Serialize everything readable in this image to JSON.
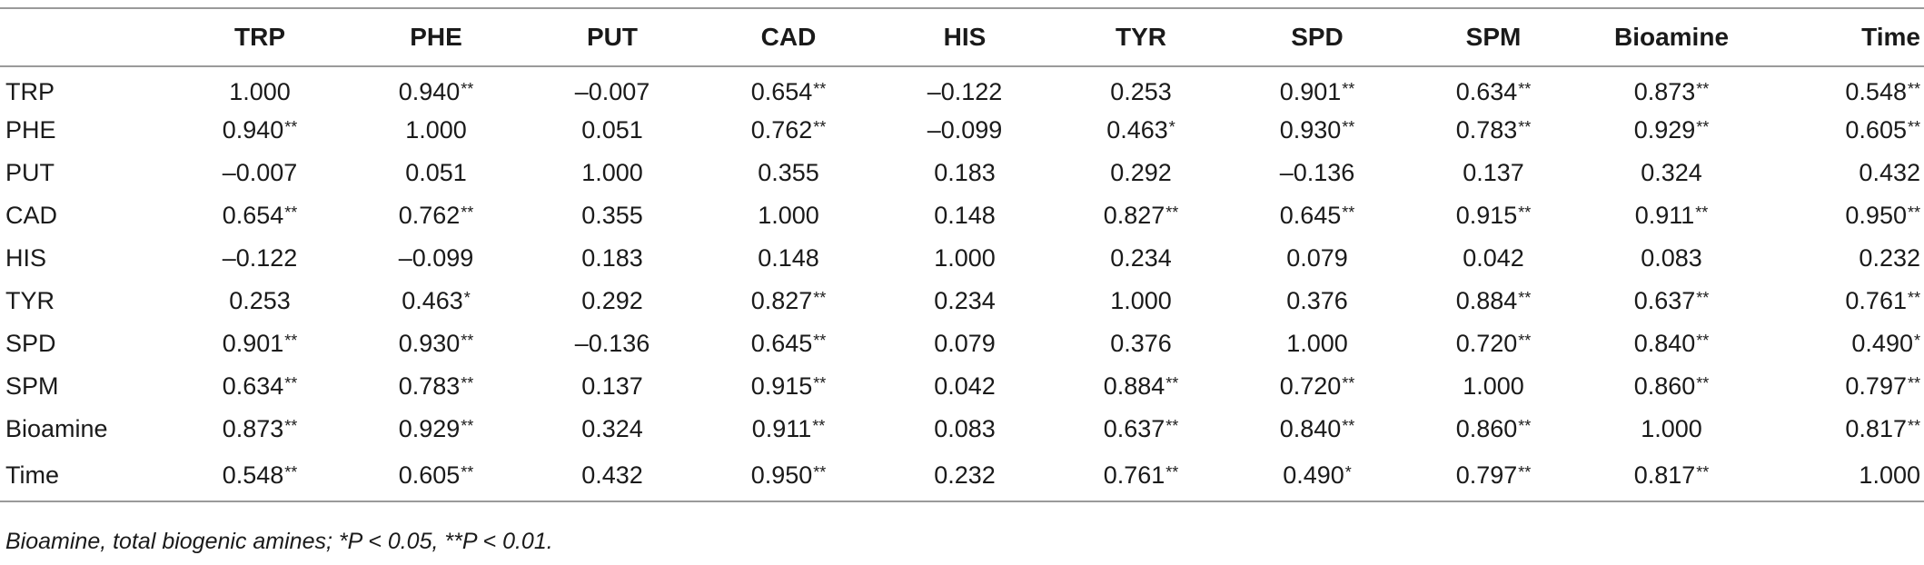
{
  "table": {
    "corner_label": "",
    "columns": [
      "TRP",
      "PHE",
      "PUT",
      "CAD",
      "HIS",
      "TYR",
      "SPD",
      "SPM",
      "Bioamine",
      "Time"
    ],
    "rows": [
      {
        "label": "TRP",
        "cells": [
          {
            "v": "1.000",
            "s": ""
          },
          {
            "v": "0.940",
            "s": "**"
          },
          {
            "v": "–0.007",
            "s": ""
          },
          {
            "v": "0.654",
            "s": "**"
          },
          {
            "v": "–0.122",
            "s": ""
          },
          {
            "v": "0.253",
            "s": ""
          },
          {
            "v": "0.901",
            "s": "**"
          },
          {
            "v": "0.634",
            "s": "**"
          },
          {
            "v": "0.873",
            "s": "**"
          },
          {
            "v": "0.548",
            "s": "**"
          }
        ]
      },
      {
        "label": "PHE",
        "cells": [
          {
            "v": "0.940",
            "s": "**"
          },
          {
            "v": "1.000",
            "s": ""
          },
          {
            "v": "0.051",
            "s": ""
          },
          {
            "v": "0.762",
            "s": "**"
          },
          {
            "v": "–0.099",
            "s": ""
          },
          {
            "v": "0.463",
            "s": "*"
          },
          {
            "v": "0.930",
            "s": "**"
          },
          {
            "v": "0.783",
            "s": "**"
          },
          {
            "v": "0.929",
            "s": "**"
          },
          {
            "v": "0.605",
            "s": "**"
          }
        ]
      },
      {
        "label": "PUT",
        "cells": [
          {
            "v": "–0.007",
            "s": ""
          },
          {
            "v": "0.051",
            "s": ""
          },
          {
            "v": "1.000",
            "s": ""
          },
          {
            "v": "0.355",
            "s": ""
          },
          {
            "v": "0.183",
            "s": ""
          },
          {
            "v": "0.292",
            "s": ""
          },
          {
            "v": "–0.136",
            "s": ""
          },
          {
            "v": "0.137",
            "s": ""
          },
          {
            "v": "0.324",
            "s": ""
          },
          {
            "v": "0.432",
            "s": ""
          }
        ]
      },
      {
        "label": "CAD",
        "cells": [
          {
            "v": "0.654",
            "s": "**"
          },
          {
            "v": "0.762",
            "s": "**"
          },
          {
            "v": "0.355",
            "s": ""
          },
          {
            "v": "1.000",
            "s": ""
          },
          {
            "v": "0.148",
            "s": ""
          },
          {
            "v": "0.827",
            "s": "**"
          },
          {
            "v": "0.645",
            "s": "**"
          },
          {
            "v": "0.915",
            "s": "**"
          },
          {
            "v": "0.911",
            "s": "**"
          },
          {
            "v": "0.950",
            "s": "**"
          }
        ]
      },
      {
        "label": "HIS",
        "cells": [
          {
            "v": "–0.122",
            "s": ""
          },
          {
            "v": "–0.099",
            "s": ""
          },
          {
            "v": "0.183",
            "s": ""
          },
          {
            "v": "0.148",
            "s": ""
          },
          {
            "v": "1.000",
            "s": ""
          },
          {
            "v": "0.234",
            "s": ""
          },
          {
            "v": "0.079",
            "s": ""
          },
          {
            "v": "0.042",
            "s": ""
          },
          {
            "v": "0.083",
            "s": ""
          },
          {
            "v": "0.232",
            "s": ""
          }
        ]
      },
      {
        "label": "TYR",
        "cells": [
          {
            "v": "0.253",
            "s": ""
          },
          {
            "v": "0.463",
            "s": "*"
          },
          {
            "v": "0.292",
            "s": ""
          },
          {
            "v": "0.827",
            "s": "**"
          },
          {
            "v": "0.234",
            "s": ""
          },
          {
            "v": "1.000",
            "s": ""
          },
          {
            "v": "0.376",
            "s": ""
          },
          {
            "v": "0.884",
            "s": "**"
          },
          {
            "v": "0.637",
            "s": "**"
          },
          {
            "v": "0.761",
            "s": "**"
          }
        ]
      },
      {
        "label": "SPD",
        "cells": [
          {
            "v": "0.901",
            "s": "**"
          },
          {
            "v": "0.930",
            "s": "**"
          },
          {
            "v": "–0.136",
            "s": ""
          },
          {
            "v": "0.645",
            "s": "**"
          },
          {
            "v": "0.079",
            "s": ""
          },
          {
            "v": "0.376",
            "s": ""
          },
          {
            "v": "1.000",
            "s": ""
          },
          {
            "v": "0.720",
            "s": "**"
          },
          {
            "v": "0.840",
            "s": "**"
          },
          {
            "v": "0.490",
            "s": "*"
          }
        ]
      },
      {
        "label": "SPM",
        "cells": [
          {
            "v": "0.634",
            "s": "**"
          },
          {
            "v": "0.783",
            "s": "**"
          },
          {
            "v": "0.137",
            "s": ""
          },
          {
            "v": "0.915",
            "s": "**"
          },
          {
            "v": "0.042",
            "s": ""
          },
          {
            "v": "0.884",
            "s": "**"
          },
          {
            "v": "0.720",
            "s": "**"
          },
          {
            "v": "1.000",
            "s": ""
          },
          {
            "v": "0.860",
            "s": "**"
          },
          {
            "v": "0.797",
            "s": "**"
          }
        ]
      },
      {
        "label": "Bioamine",
        "cells": [
          {
            "v": "0.873",
            "s": "**"
          },
          {
            "v": "0.929",
            "s": "**"
          },
          {
            "v": "0.324",
            "s": ""
          },
          {
            "v": "0.911",
            "s": "**"
          },
          {
            "v": "0.083",
            "s": ""
          },
          {
            "v": "0.637",
            "s": "**"
          },
          {
            "v": "0.840",
            "s": "**"
          },
          {
            "v": "0.860",
            "s": "**"
          },
          {
            "v": "1.000",
            "s": ""
          },
          {
            "v": "0.817",
            "s": "**"
          }
        ]
      },
      {
        "label": "Time",
        "cells": [
          {
            "v": "0.548",
            "s": "**"
          },
          {
            "v": "0.605",
            "s": "**"
          },
          {
            "v": "0.432",
            "s": ""
          },
          {
            "v": "0.950",
            "s": "**"
          },
          {
            "v": "0.232",
            "s": ""
          },
          {
            "v": "0.761",
            "s": "**"
          },
          {
            "v": "0.490",
            "s": "*"
          },
          {
            "v": "0.797",
            "s": "**"
          },
          {
            "v": "0.817",
            "s": "**"
          },
          {
            "v": "1.000",
            "s": ""
          }
        ]
      }
    ]
  },
  "footnote": "Bioamine, total biogenic amines; *P < 0.05, **P < 0.01.",
  "colors": {
    "rule": "#9a9a9a",
    "text": "#1a1a1a"
  }
}
